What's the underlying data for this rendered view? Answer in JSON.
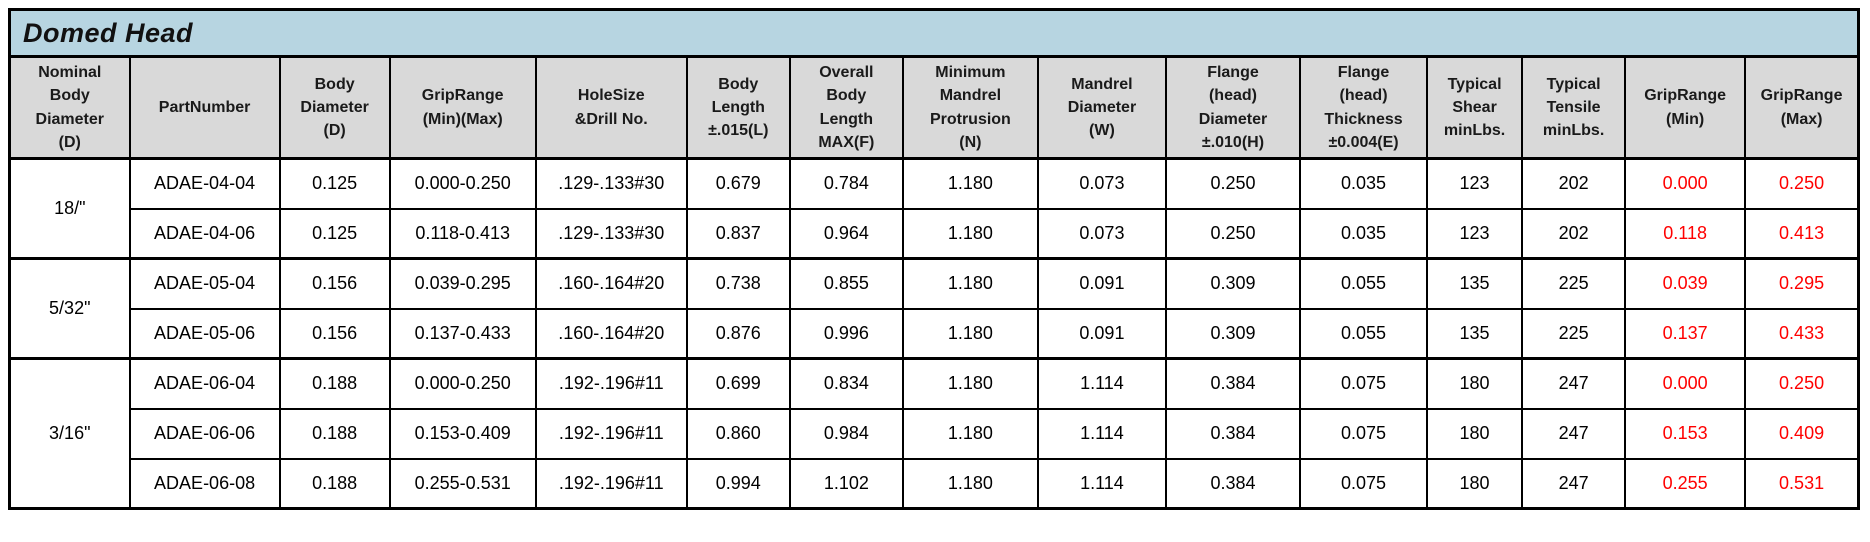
{
  "title": "Domed Head",
  "colors": {
    "title_bg": "#b7d5e1",
    "header_bg": "#d9d9d9",
    "red_accent": "#ff0000",
    "border": "#000000"
  },
  "columns": [
    {
      "key": "nominal-body-diameter",
      "label": "Nominal\nBody\nDiameter\n(D)",
      "red": false
    },
    {
      "key": "part-number",
      "label": "PartNumber",
      "red": false
    },
    {
      "key": "body-diameter",
      "label": "Body\nDiameter\n(D)",
      "red": false
    },
    {
      "key": "grip-range",
      "label": "GripRange\n(Min)(Max)",
      "red": false
    },
    {
      "key": "hole-size",
      "label": "HoleSize\n&Drill No.",
      "red": false
    },
    {
      "key": "body-length",
      "label": "Body\nLength\n±.015(L)",
      "red": false
    },
    {
      "key": "overall-body-length",
      "label": "Overall\nBody\nLength\nMAX(F)",
      "red": false
    },
    {
      "key": "min-mandrel-protrusion",
      "label": "Minimum\nMandrel\nProtrusion\n(N)",
      "red": false
    },
    {
      "key": "mandrel-diameter",
      "label": "Mandrel\nDiameter\n(W)",
      "red": false
    },
    {
      "key": "flange-head-diameter",
      "label": "Flange\n(head)\nDiameter\n±.010(H)",
      "red": false
    },
    {
      "key": "flange-head-thickness",
      "label": "Flange\n(head)\nThickness\n±0.004(E)",
      "red": false
    },
    {
      "key": "typical-shear",
      "label": "Typical\nShear\nminLbs.",
      "red": false
    },
    {
      "key": "typical-tensile",
      "label": "Typical\nTensile\nminLbs.",
      "red": false
    },
    {
      "key": "grip-range-min",
      "label": "GripRange\n(Min)",
      "red": true
    },
    {
      "key": "grip-range-max",
      "label": "GripRange\n(Max)",
      "red": true
    }
  ],
  "groups": [
    {
      "size_label": "18/\"",
      "rows": [
        {
          "cells": [
            "ADAE-04-04",
            "0.125",
            "0.000-0.250",
            ".129-.133#30",
            "0.679",
            "0.784",
            "1.180",
            "0.073",
            "0.250",
            "0.035",
            "123",
            "202",
            "0.000",
            "0.250"
          ]
        },
        {
          "cells": [
            "ADAE-04-06",
            "0.125",
            "0.118-0.413",
            ".129-.133#30",
            "0.837",
            "0.964",
            "1.180",
            "0.073",
            "0.250",
            "0.035",
            "123",
            "202",
            "0.118",
            "0.413"
          ]
        }
      ]
    },
    {
      "size_label": "5/32\"",
      "rows": [
        {
          "cells": [
            "ADAE-05-04",
            "0.156",
            "0.039-0.295",
            ".160-.164#20",
            "0.738",
            "0.855",
            "1.180",
            "0.091",
            "0.309",
            "0.055",
            "135",
            "225",
            "0.039",
            "0.295"
          ]
        },
        {
          "cells": [
            "ADAE-05-06",
            "0.156",
            "0.137-0.433",
            ".160-.164#20",
            "0.876",
            "0.996",
            "1.180",
            "0.091",
            "0.309",
            "0.055",
            "135",
            "225",
            "0.137",
            "0.433"
          ]
        }
      ]
    },
    {
      "size_label": "3/16\"",
      "rows": [
        {
          "cells": [
            "ADAE-06-04",
            "0.188",
            "0.000-0.250",
            ".192-.196#11",
            "0.699",
            "0.834",
            "1.180",
            "1.114",
            "0.384",
            "0.075",
            "180",
            "247",
            "0.000",
            "0.250"
          ]
        },
        {
          "cells": [
            "ADAE-06-06",
            "0.188",
            "0.153-0.409",
            ".192-.196#11",
            "0.860",
            "0.984",
            "1.180",
            "1.114",
            "0.384",
            "0.075",
            "180",
            "247",
            "0.153",
            "0.409"
          ]
        },
        {
          "cells": [
            "ADAE-06-08",
            "0.188",
            "0.255-0.531",
            ".192-.196#11",
            "0.994",
            "1.102",
            "1.180",
            "1.114",
            "0.384",
            "0.075",
            "180",
            "247",
            "0.255",
            "0.531"
          ]
        }
      ]
    }
  ]
}
